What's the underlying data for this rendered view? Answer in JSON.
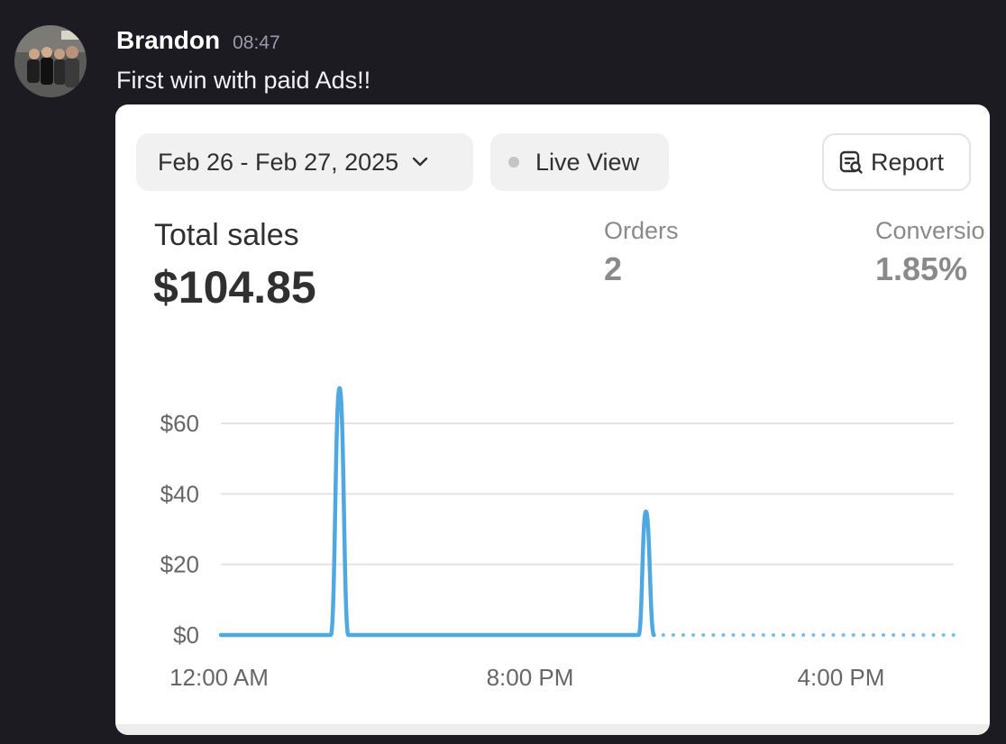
{
  "message": {
    "author": "Brandon",
    "timestamp": "08:47",
    "text": "First win with paid Ads!!",
    "avatar_icon": "group-photo-avatar"
  },
  "card": {
    "date_range": "Feb 26 - Feb 27, 2025",
    "live_view_label": "Live View",
    "report_label": "Report",
    "total_sales_label": "Total sales",
    "total_sales_value": "$104.85",
    "orders_label": "Orders",
    "orders_value": "2",
    "conversion_label": "Conversio",
    "conversion_value": "1.85%"
  },
  "colors": {
    "line": "#4fa8e0",
    "grid": "#e4e4e4",
    "card_bg": "#ffffff",
    "page_bg": "#1b1b21"
  },
  "chart_data": {
    "type": "line",
    "ylim": [
      0,
      70
    ],
    "y_ticks": [
      {
        "value": 0,
        "label": "$0"
      },
      {
        "value": 20,
        "label": "$20"
      },
      {
        "value": 40,
        "label": "$40"
      },
      {
        "value": 60,
        "label": "$60"
      }
    ],
    "x_tick_labels": [
      "12:00 AM",
      "8:00 PM",
      "4:00 PM"
    ],
    "series": [
      {
        "style": "solid",
        "points": [
          {
            "x": 0.0,
            "y": 0
          },
          {
            "x": 0.15,
            "y": 0
          },
          {
            "x": 0.162,
            "y": 70
          },
          {
            "x": 0.174,
            "y": 0
          },
          {
            "x": 0.57,
            "y": 0
          },
          {
            "x": 0.58,
            "y": 35
          },
          {
            "x": 0.591,
            "y": 0
          }
        ]
      },
      {
        "style": "dotted",
        "points": [
          {
            "x": 0.59,
            "y": 0
          },
          {
            "x": 1.0,
            "y": 0
          }
        ]
      }
    ]
  }
}
